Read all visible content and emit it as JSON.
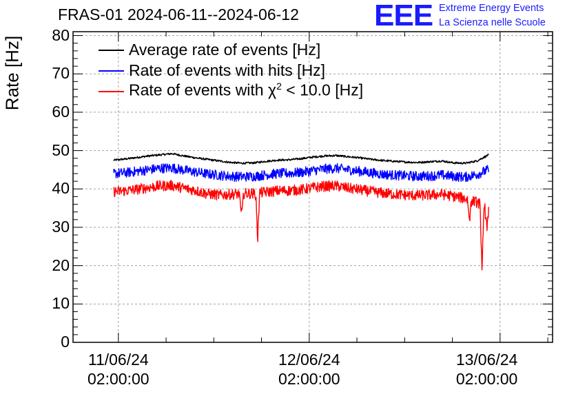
{
  "header": {
    "title": "FRAS-01 2024-06-11--2024-06-12"
  },
  "logo": {
    "mark": "EEE",
    "line1": "Extreme Energy Events",
    "line2": "La Scienza nelle Scuole",
    "color": "#1a1aff"
  },
  "legend": {
    "items": [
      {
        "label": "Average rate of events [Hz]",
        "color": "#000000"
      },
      {
        "label": "Rate of events with hits [Hz]",
        "color": "#0000ff"
      },
      {
        "label_prefix": "Rate of events with ",
        "chi": "χ",
        "sup": "2",
        "label_suffix": " < 10.0 [Hz]",
        "color": "#ff0000"
      }
    ]
  },
  "chart_data": {
    "type": "line",
    "title": "FRAS-01 2024-06-11--2024-06-12",
    "xlabel": "",
    "ylabel": "Rate [Hz]",
    "ylim": [
      0,
      81
    ],
    "xlim_hours": [
      -1.75,
      48.5
    ],
    "grid": true,
    "y_ticks": [
      "0",
      "10",
      "20",
      "30",
      "40",
      "50",
      "60",
      "70",
      "80"
    ],
    "x_ticks": [
      {
        "date": "11/06/24",
        "time": "02:00:00",
        "hours": 3
      },
      {
        "date": "12/06/24",
        "time": "02:00:00",
        "hours": 23
      },
      {
        "date": "13/06/24",
        "time": "02:00:00",
        "hours": 43
      }
    ],
    "x_start_hours": 2.5,
    "x_end_hours": 41.8,
    "series": [
      {
        "name": "Average rate of events [Hz]",
        "color": "#000000",
        "noise": 0.25,
        "values": [
          47.5,
          47.8,
          48.2,
          48.6,
          48.9,
          49.2,
          48.6,
          48.1,
          47.7,
          47.3,
          46.9,
          46.7,
          46.8,
          47.2,
          47.5,
          47.6,
          47.9,
          48.3,
          48.6,
          48.7,
          48.4,
          48.1,
          47.7,
          47.4,
          47.2,
          47.0,
          46.9,
          47.1,
          47.3,
          46.8,
          46.7,
          47.3,
          48.9
        ]
      },
      {
        "name": "Rate of events with hits [Hz]",
        "color": "#0000ff",
        "noise": 1.3,
        "values": [
          44.0,
          44.2,
          44.6,
          45.0,
          45.4,
          45.5,
          44.9,
          44.4,
          43.9,
          43.6,
          43.3,
          43.2,
          43.3,
          43.7,
          44.0,
          44.1,
          44.3,
          44.8,
          45.2,
          45.4,
          45.0,
          44.6,
          44.2,
          43.8,
          43.6,
          43.4,
          43.3,
          43.4,
          43.6,
          43.3,
          43.1,
          43.8,
          45.0
        ]
      },
      {
        "name": "Rate of events with χ² < 10.0 [Hz]",
        "color": "#ff0000",
        "noise": 1.4,
        "values": [
          39.3,
          39.5,
          39.9,
          40.4,
          40.8,
          40.9,
          40.2,
          39.6,
          38.7,
          38.4,
          38.6,
          38.8,
          38.8,
          39.2,
          39.5,
          39.6,
          39.8,
          40.3,
          40.7,
          40.8,
          40.2,
          39.8,
          39.3,
          38.9,
          38.6,
          38.4,
          38.3,
          38.4,
          38.6,
          38.1,
          37.5,
          36.5,
          35.0
        ],
        "dips": [
          {
            "hours": 15.9,
            "value": 32.5
          },
          {
            "hours": 17.6,
            "value": 25.0
          },
          {
            "hours": 39.8,
            "value": 30.5
          },
          {
            "hours": 41.1,
            "value": 17.0
          },
          {
            "hours": 41.6,
            "value": 28.0
          }
        ]
      }
    ]
  }
}
